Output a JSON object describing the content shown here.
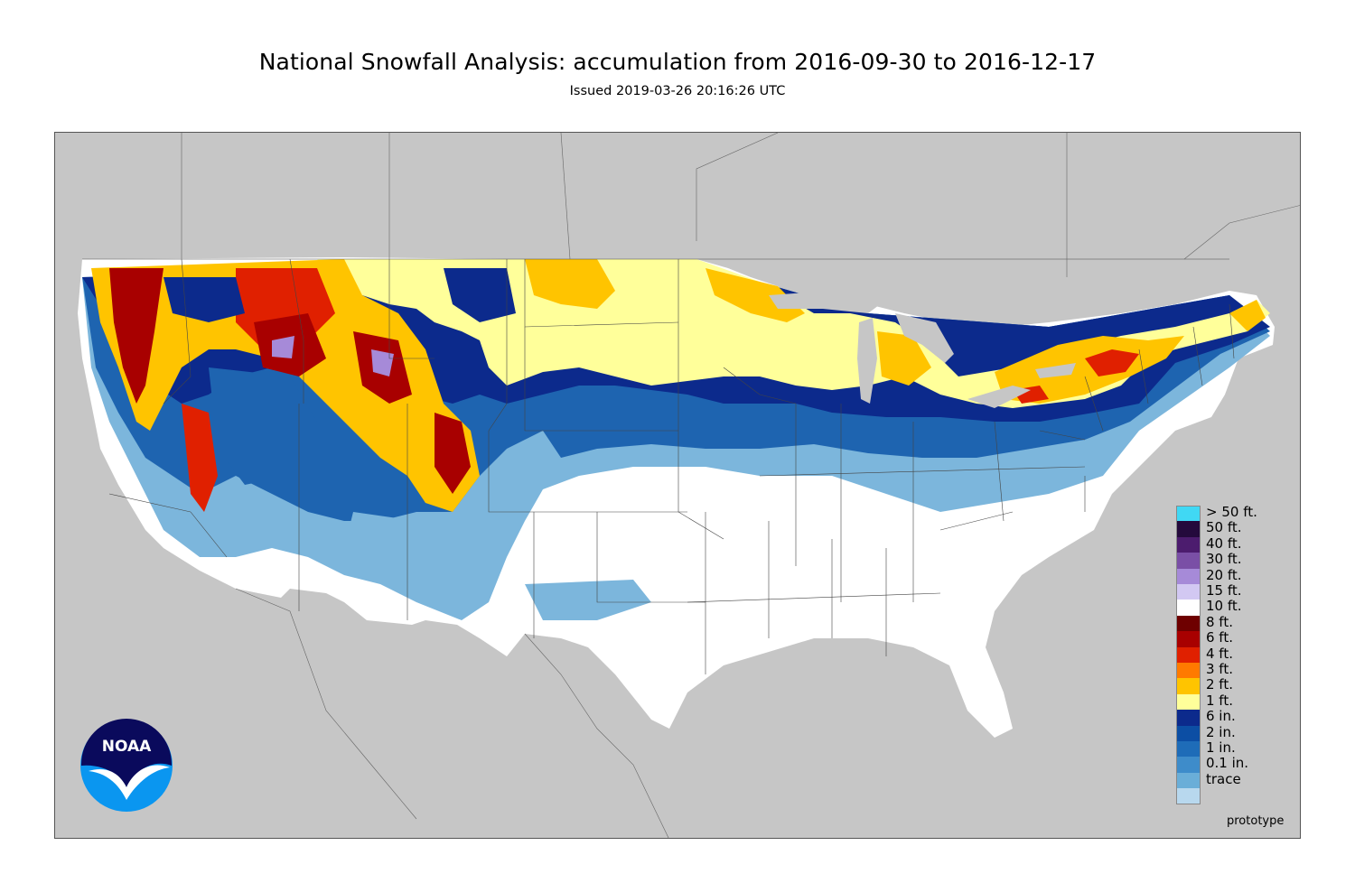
{
  "title": "National Snowfall Analysis: accumulation from 2016-09-30 to 2016-12-17",
  "subtitle": "Issued 2019-03-26 20:16:26 UTC",
  "map": {
    "region": "Contiguous United States",
    "background_color": "#c6c6c6",
    "land_color": "#ffffff",
    "border_color": "#555555"
  },
  "legend": {
    "items": [
      {
        "label": "> 50 ft.",
        "color": "#40d8f4"
      },
      {
        "label": "50 ft.",
        "color": "#240a3c"
      },
      {
        "label": "40 ft.",
        "color": "#4c1c6e"
      },
      {
        "label": "30 ft.",
        "color": "#7a4fa6"
      },
      {
        "label": "20 ft.",
        "color": "#a68ad8"
      },
      {
        "label": "15 ft.",
        "color": "#d2c8f2"
      },
      {
        "label": "10 ft.",
        "color": "#ffffff"
      },
      {
        "label": "8 ft.",
        "color": "#6e0000"
      },
      {
        "label": "6 ft.",
        "color": "#a80000"
      },
      {
        "label": "4 ft.",
        "color": "#e02000"
      },
      {
        "label": "3 ft.",
        "color": "#ff7a00"
      },
      {
        "label": "2 ft.",
        "color": "#ffc400"
      },
      {
        "label": "1 ft.",
        "color": "#ffff9a"
      },
      {
        "label": "6 in.",
        "color": "#0c2a8c"
      },
      {
        "label": "2 in.",
        "color": "#0c4ea4"
      },
      {
        "label": "1 in.",
        "color": "#1e6cb8"
      },
      {
        "label": "0.1 in.",
        "color": "#3e8cca"
      },
      {
        "label": "trace",
        "color": "#6aaed8"
      }
    ],
    "bottom_swatch_color": "#b8d8ee"
  },
  "footer_note": "prototype",
  "logo": {
    "text": "NOAA",
    "primary_color": "#0a0a5c",
    "accent_color": "#0a96f0"
  }
}
